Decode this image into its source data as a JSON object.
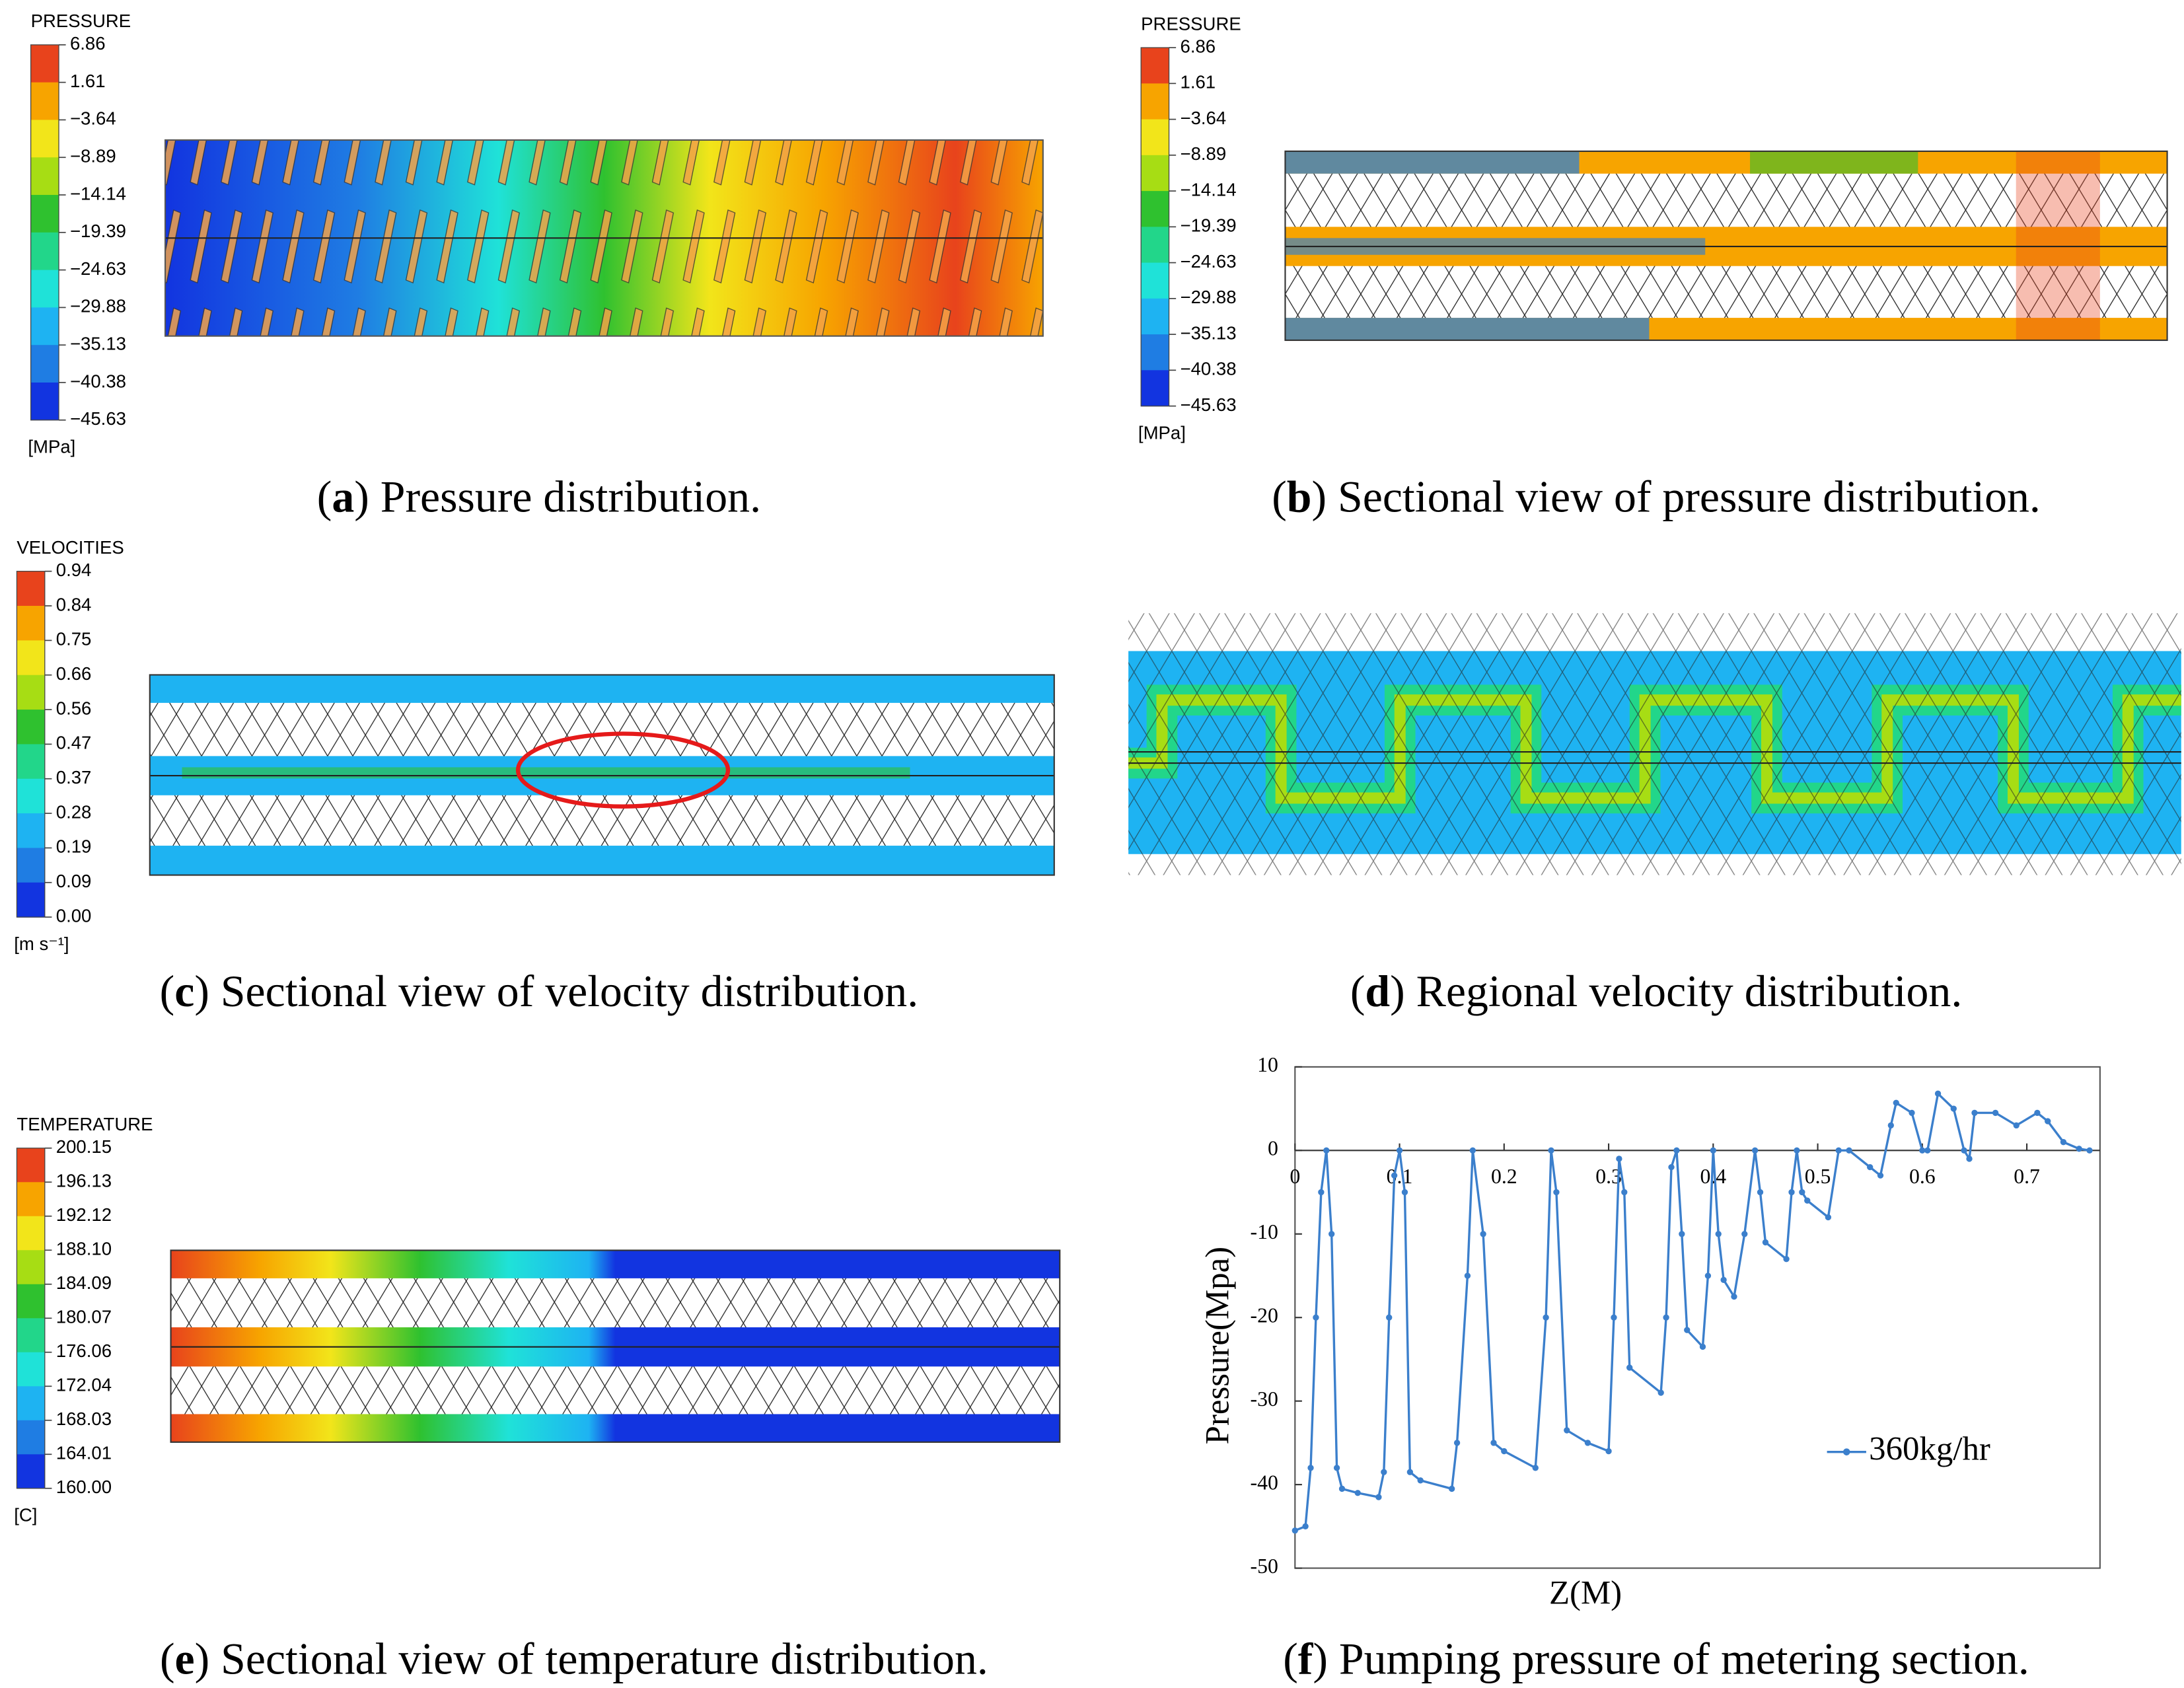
{
  "figures": [
    {
      "caption": [
        "(",
        "a",
        ") Pressure distribution."
      ],
      "colorbar": {
        "title": "PRESSURE",
        "unit": "[MPa]",
        "labels": [
          "6.86",
          "1.61",
          "−3.64",
          "−8.89",
          "−14.14",
          "−19.39",
          "−24.63",
          "−29.88",
          "−35.13",
          "−40.38",
          "−45.63"
        ],
        "colors": [
          "#e8431c",
          "#f7a400",
          "#f2e51a",
          "#a7dd14",
          "#2fc12f",
          "#22d68a",
          "#1fe2d8",
          "#1eb3f2",
          "#1f7de3",
          "#1234e0"
        ]
      }
    },
    {
      "caption": [
        "(",
        "b",
        ") Sectional view of pressure distribution."
      ],
      "colorbar": {
        "title": "PRESSURE",
        "unit": "[MPa]",
        "labels": [
          "6.86",
          "1.61",
          "−3.64",
          "−8.89",
          "−14.14",
          "−19.39",
          "−24.63",
          "−29.88",
          "−35.13",
          "−40.38",
          "−45.63"
        ],
        "colors": [
          "#e8431c",
          "#f7a400",
          "#f2e51a",
          "#a7dd14",
          "#2fc12f",
          "#22d68a",
          "#1fe2d8",
          "#1eb3f2",
          "#1f7de3",
          "#1234e0"
        ]
      }
    },
    {
      "caption": [
        "(",
        "c",
        ") Sectional view of velocity distribution."
      ],
      "colorbar": {
        "title": "VELOCITIES",
        "unit": "[m s⁻¹]",
        "labels": [
          "0.94",
          "0.84",
          "0.75",
          "0.66",
          "0.56",
          "0.47",
          "0.37",
          "0.28",
          "0.19",
          "0.09",
          "0.00"
        ],
        "colors": [
          "#e8431c",
          "#f7a400",
          "#f2e51a",
          "#a7dd14",
          "#2fc12f",
          "#22d68a",
          "#1fe2d8",
          "#1eb3f2",
          "#1f7de3",
          "#1234e0"
        ]
      }
    },
    {
      "caption": [
        "(",
        "d",
        ") Regional velocity distribution."
      ]
    },
    {
      "caption": [
        "(",
        "e",
        ") Sectional view of temperature distribution."
      ],
      "colorbar": {
        "title": "TEMPERATURE",
        "unit": "[C]",
        "labels": [
          "200.15",
          "196.13",
          "192.12",
          "188.10",
          "184.09",
          "180.07",
          "176.06",
          "172.04",
          "168.03",
          "164.01",
          "160.00"
        ],
        "colors": [
          "#e8431c",
          "#f7a400",
          "#f2e51a",
          "#a7dd14",
          "#2fc12f",
          "#22d68a",
          "#1fe2d8",
          "#1eb3f2",
          "#1f7de3",
          "#1234e0"
        ]
      }
    }
  ],
  "chart_data": {
    "type": "line",
    "caption": [
      "(",
      "f",
      ") Pumping pressure of metering section."
    ],
    "xlabel": "Z(M)",
    "ylabel": "Pressure(Mpa)",
    "xlim": [
      0,
      0.77
    ],
    "ylim": [
      -50,
      10
    ],
    "xticks": [
      0,
      0.1,
      0.2,
      0.3,
      0.4,
      0.5,
      0.6,
      0.7
    ],
    "yticks": [
      10,
      0,
      -10,
      -20,
      -30,
      -40,
      -50
    ],
    "x": [
      0,
      0.01,
      0.015,
      0.02,
      0.025,
      0.03,
      0.035,
      0.04,
      0.045,
      0.06,
      0.08,
      0.085,
      0.09,
      0.095,
      0.1,
      0.105,
      0.11,
      0.12,
      0.15,
      0.155,
      0.165,
      0.17,
      0.18,
      0.19,
      0.2,
      0.23,
      0.24,
      0.245,
      0.25,
      0.26,
      0.28,
      0.3,
      0.305,
      0.31,
      0.315,
      0.32,
      0.35,
      0.355,
      0.36,
      0.365,
      0.37,
      0.375,
      0.39,
      0.395,
      0.4,
      0.405,
      0.41,
      0.42,
      0.43,
      0.44,
      0.445,
      0.45,
      0.47,
      0.475,
      0.48,
      0.485,
      0.49,
      0.51,
      0.52,
      0.53,
      0.55,
      0.56,
      0.57,
      0.575,
      0.59,
      0.6,
      0.605,
      0.615,
      0.63,
      0.64,
      0.645,
      0.65,
      0.67,
      0.69,
      0.71,
      0.72,
      0.735,
      0.75,
      0.76
    ],
    "series": [
      {
        "name": "360kg/hr",
        "color": "#3b7fcc",
        "values": [
          -45.5,
          -45,
          -38,
          -20,
          -5,
          0,
          -10,
          -38,
          -40.5,
          -41,
          -41.5,
          -38.5,
          -20,
          -3,
          0,
          -5,
          -38.5,
          -39.5,
          -40.5,
          -35,
          -15,
          0,
          -10,
          -35,
          -36,
          -38,
          -20,
          0,
          -5,
          -33.5,
          -35,
          -36,
          -20,
          -1,
          -5,
          -26,
          -29,
          -20,
          -2,
          0,
          -10,
          -21.5,
          -23.5,
          -15,
          0,
          -10,
          -15.5,
          -17.5,
          -10,
          0,
          -5,
          -11,
          -13,
          -5,
          0,
          -5,
          -6,
          -8,
          0,
          0,
          -2,
          -3,
          3,
          5.7,
          4.5,
          0,
          0,
          6.8,
          5,
          0,
          -1,
          4.5,
          4.5,
          3,
          4.5,
          3.5,
          1,
          0.2,
          0
        ]
      }
    ],
    "legend": "lower right"
  }
}
